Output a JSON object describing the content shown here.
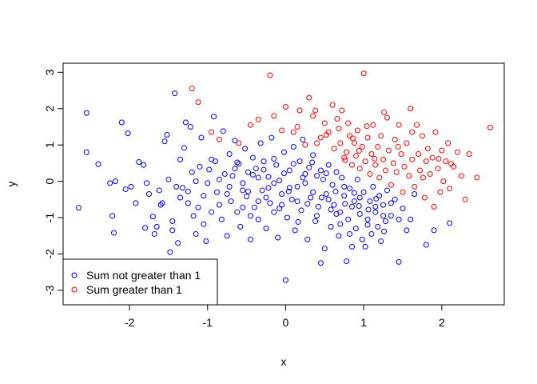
{
  "chart_data": {
    "type": "scatter",
    "title": "",
    "xlabel": "x",
    "ylabel": "y",
    "xlim": [
      -2.85,
      2.8
    ],
    "ylim": [
      -3.4,
      3.25
    ],
    "xticks": [
      -2,
      -1,
      0,
      1,
      2
    ],
    "yticks": [
      -3,
      -2,
      -1,
      0,
      1,
      2,
      3
    ],
    "grid": false,
    "legend_position": "bottom-left",
    "series": [
      {
        "name": "Sum not greater than 1",
        "color": "#0000ff",
        "marker": "open-circle",
        "points": [
          [
            -2.65,
            -0.73
          ],
          [
            -2.55,
            1.88
          ],
          [
            -2.55,
            0.8
          ],
          [
            -2.4,
            0.47
          ],
          [
            -2.25,
            -0.05
          ],
          [
            -2.22,
            -0.95
          ],
          [
            -2.2,
            -1.42
          ],
          [
            -2.18,
            0.0
          ],
          [
            -2.1,
            1.62
          ],
          [
            -2.05,
            -0.22
          ],
          [
            -2.02,
            1.32
          ],
          [
            -1.98,
            -0.15
          ],
          [
            -1.92,
            -0.6
          ],
          [
            -1.88,
            0.53
          ],
          [
            -1.82,
            0.45
          ],
          [
            -1.8,
            -1.28
          ],
          [
            -1.78,
            -0.05
          ],
          [
            -1.75,
            -0.35
          ],
          [
            -1.7,
            -0.97
          ],
          [
            -1.68,
            -1.45
          ],
          [
            -1.65,
            -1.25
          ],
          [
            -1.62,
            -0.25
          ],
          [
            -1.6,
            -0.65
          ],
          [
            -1.58,
            -0.6
          ],
          [
            -1.55,
            1.1
          ],
          [
            -1.52,
            1.28
          ],
          [
            -1.5,
            0.05
          ],
          [
            -1.48,
            -1.95
          ],
          [
            -1.45,
            -1.35
          ],
          [
            -1.42,
            2.42
          ],
          [
            -1.4,
            -0.15
          ],
          [
            -1.38,
            -1.7
          ],
          [
            -1.35,
            -0.45
          ],
          [
            -1.32,
            -0.18
          ],
          [
            -1.3,
            0.92
          ],
          [
            -1.28,
            1.62
          ],
          [
            -1.25,
            -0.28
          ],
          [
            -1.22,
            1.5
          ],
          [
            -1.2,
            0.25
          ],
          [
            -1.18,
            -0.95
          ],
          [
            -1.15,
            -1.45
          ],
          [
            -1.12,
            -0.72
          ],
          [
            -1.1,
            0.4
          ],
          [
            -1.08,
            1.2
          ],
          [
            -1.05,
            -1.18
          ],
          [
            -1.02,
            -1.65
          ],
          [
            -1.0,
            -0.05
          ],
          [
            -0.98,
            0.32
          ],
          [
            -0.95,
            -0.85
          ],
          [
            -0.92,
            1.78
          ],
          [
            -0.9,
            0.55
          ],
          [
            -0.88,
            -0.3
          ],
          [
            -0.85,
            0.05
          ],
          [
            -0.82,
            -1.05
          ],
          [
            -0.8,
            1.38
          ],
          [
            -0.78,
            0.2
          ],
          [
            -0.75,
            -1.5
          ],
          [
            -0.72,
            0.75
          ],
          [
            -0.7,
            -0.55
          ],
          [
            -0.68,
            0.15
          ],
          [
            -0.65,
            1.12
          ],
          [
            -0.62,
            -0.85
          ],
          [
            -0.6,
            0.48
          ],
          [
            -0.58,
            -1.25
          ],
          [
            -0.55,
            -0.05
          ],
          [
            -0.52,
            0.9
          ],
          [
            -0.5,
            -0.42
          ],
          [
            -0.48,
            0.25
          ],
          [
            -0.45,
            -1.6
          ],
          [
            -0.42,
            0.65
          ],
          [
            -0.4,
            -0.72
          ],
          [
            -0.38,
            0.35
          ],
          [
            -0.35,
            -1.05
          ],
          [
            -0.32,
            1.05
          ],
          [
            -0.3,
            -0.25
          ],
          [
            -0.28,
            0.55
          ],
          [
            -0.25,
            -1.3
          ],
          [
            -0.22,
            0.12
          ],
          [
            -0.2,
            -0.6
          ],
          [
            -0.18,
            1.2
          ],
          [
            -0.15,
            -0.85
          ],
          [
            -0.12,
            0.45
          ],
          [
            -0.1,
            -1.55
          ],
          [
            -0.08,
            0.02
          ],
          [
            -0.05,
            -0.35
          ],
          [
            -0.02,
            0.8
          ],
          [
            0.0,
            -2.72
          ],
          [
            0.02,
            -1.0
          ],
          [
            0.05,
            0.3
          ],
          [
            0.08,
            -0.5
          ],
          [
            0.1,
            0.95
          ],
          [
            0.12,
            -1.35
          ],
          [
            0.15,
            -0.15
          ],
          [
            0.18,
            0.55
          ],
          [
            0.2,
            -0.8
          ],
          [
            0.22,
            1.15
          ],
          [
            0.25,
            -0.05
          ],
          [
            0.28,
            -1.6
          ],
          [
            0.3,
            0.38
          ],
          [
            0.32,
            -0.45
          ],
          [
            0.35,
            0.72
          ],
          [
            0.38,
            -1.1
          ],
          [
            0.4,
            0.15
          ],
          [
            0.42,
            -0.7
          ],
          [
            0.45,
            -2.25
          ],
          [
            0.48,
            0.05
          ],
          [
            0.5,
            -1.85
          ],
          [
            0.52,
            -0.35
          ],
          [
            0.55,
            0.45
          ],
          [
            0.58,
            -1.25
          ],
          [
            0.6,
            -0.1
          ],
          [
            0.62,
            -0.65
          ],
          [
            0.65,
            0.25
          ],
          [
            0.68,
            -1.5
          ],
          [
            0.7,
            -0.85
          ],
          [
            0.72,
            0.1
          ],
          [
            0.75,
            -0.4
          ],
          [
            0.78,
            -2.2
          ],
          [
            0.8,
            -1.05
          ],
          [
            0.82,
            -0.2
          ],
          [
            0.85,
            -1.8
          ],
          [
            0.88,
            -0.55
          ],
          [
            0.9,
            -1.3
          ],
          [
            0.92,
            0.05
          ],
          [
            0.95,
            -0.9
          ],
          [
            0.98,
            -1.6
          ],
          [
            1.0,
            -0.3
          ],
          [
            1.02,
            -1.8
          ],
          [
            1.05,
            -1.05
          ],
          [
            1.08,
            -0.55
          ],
          [
            1.1,
            -1.45
          ],
          [
            1.12,
            -0.15
          ],
          [
            1.15,
            -0.85
          ],
          [
            1.18,
            -1.25
          ],
          [
            1.2,
            -0.4
          ],
          [
            1.22,
            -1.65
          ],
          [
            1.25,
            -0.65
          ],
          [
            1.28,
            -1.1
          ],
          [
            1.3,
            -0.25
          ],
          [
            1.35,
            -0.95
          ],
          [
            1.4,
            -0.5
          ],
          [
            1.45,
            -2.22
          ],
          [
            1.5,
            -0.75
          ],
          [
            1.55,
            -1.35
          ],
          [
            1.6,
            -1.05
          ],
          [
            1.65,
            -0.35
          ],
          [
            1.8,
            -1.75
          ],
          [
            1.9,
            -1.35
          ],
          [
            2.1,
            -1.15
          ],
          [
            -0.72,
            -0.15
          ],
          [
            -0.62,
            0.52
          ],
          [
            -0.55,
            -0.72
          ],
          [
            -0.48,
            -0.28
          ],
          [
            -0.42,
            0.18
          ],
          [
            -0.35,
            -0.55
          ],
          [
            -0.28,
            0.32
          ],
          [
            -0.22,
            -0.18
          ],
          [
            -0.15,
            0.62
          ],
          [
            -0.08,
            -0.75
          ],
          [
            -0.02,
            0.22
          ],
          [
            0.04,
            -0.28
          ],
          [
            0.1,
            0.48
          ],
          [
            0.16,
            -1.12
          ],
          [
            0.22,
            0.1
          ],
          [
            0.28,
            -0.62
          ],
          [
            0.34,
            0.52
          ],
          [
            0.4,
            -0.95
          ],
          [
            0.46,
            -0.45
          ],
          [
            0.52,
            0.22
          ],
          [
            0.58,
            -0.78
          ],
          [
            0.64,
            -0.28
          ],
          [
            0.7,
            -1.18
          ],
          [
            0.76,
            -0.62
          ],
          [
            0.82,
            -1.45
          ],
          [
            0.88,
            -0.32
          ],
          [
            0.94,
            -0.68
          ],
          [
            1.06,
            -0.78
          ],
          [
            1.16,
            -0.48
          ],
          [
            1.26,
            -1.38
          ],
          [
            -1.45,
            -1.1
          ],
          [
            -1.35,
            0.6
          ],
          [
            -1.25,
            -0.6
          ],
          [
            -1.15,
            0.0
          ],
          [
            -1.05,
            -0.4
          ],
          [
            -0.95,
            0.6
          ],
          [
            -0.85,
            -0.65
          ],
          [
            -0.75,
            -0.35
          ],
          [
            -0.65,
            0.35
          ],
          [
            -0.55,
            -0.25
          ],
          [
            -0.45,
            -0.95
          ],
          [
            -0.35,
            0.1
          ],
          [
            -0.25,
            -0.45
          ],
          [
            -0.15,
            -0.05
          ],
          [
            -0.05,
            -0.65
          ],
          [
            0.05,
            -0.18
          ],
          [
            0.15,
            -0.55
          ],
          [
            0.25,
            0.2
          ],
          [
            0.35,
            -0.3
          ],
          [
            0.45,
            0.3
          ],
          [
            0.55,
            -0.5
          ],
          [
            0.65,
            -0.9
          ],
          [
            0.75,
            -0.15
          ],
          [
            0.85,
            -0.7
          ],
          [
            0.95,
            -0.45
          ],
          [
            1.05,
            -1.2
          ],
          [
            1.15,
            -0.7
          ],
          [
            1.25,
            -0.95
          ],
          [
            1.35,
            -0.6
          ],
          [
            1.45,
            -1.05
          ]
        ]
      },
      {
        "name": "Sum greater than 1",
        "color": "#ff0000",
        "marker": "open-circle",
        "points": [
          [
            -1.2,
            2.55
          ],
          [
            -1.12,
            2.18
          ],
          [
            -0.95,
            1.35
          ],
          [
            -0.85,
            1.15
          ],
          [
            -0.6,
            1.05
          ],
          [
            -0.45,
            1.55
          ],
          [
            -0.35,
            1.7
          ],
          [
            -0.2,
            2.92
          ],
          [
            -0.15,
            1.8
          ],
          [
            -0.05,
            1.4
          ],
          [
            0.0,
            2.05
          ],
          [
            0.1,
            1.35
          ],
          [
            0.15,
            1.5
          ],
          [
            0.18,
            1.95
          ],
          [
            0.25,
            1.0
          ],
          [
            0.3,
            2.3
          ],
          [
            0.35,
            1.8
          ],
          [
            0.4,
            1.05
          ],
          [
            0.45,
            1.2
          ],
          [
            0.5,
            1.6
          ],
          [
            0.55,
            1.35
          ],
          [
            0.6,
            2.1
          ],
          [
            0.62,
            0.9
          ],
          [
            0.68,
            1.45
          ],
          [
            0.7,
            1.05
          ],
          [
            0.72,
            1.95
          ],
          [
            0.75,
            0.65
          ],
          [
            0.78,
            0.8
          ],
          [
            0.8,
            1.6
          ],
          [
            0.82,
            1.25
          ],
          [
            0.85,
            0.45
          ],
          [
            0.88,
            1.05
          ],
          [
            0.9,
            0.7
          ],
          [
            0.92,
            1.4
          ],
          [
            0.95,
            0.35
          ],
          [
            0.98,
            0.95
          ],
          [
            1.0,
            2.97
          ],
          [
            1.02,
            0.55
          ],
          [
            1.05,
            1.2
          ],
          [
            1.08,
            0.2
          ],
          [
            1.1,
            0.75
          ],
          [
            1.12,
            1.55
          ],
          [
            1.15,
            0.45
          ],
          [
            1.18,
            0.95
          ],
          [
            1.2,
            0.1
          ],
          [
            1.22,
            1.25
          ],
          [
            1.25,
            0.6
          ],
          [
            1.28,
            0.3
          ],
          [
            1.3,
            1.75
          ],
          [
            1.32,
            0.85
          ],
          [
            1.35,
            -0.1
          ],
          [
            1.38,
            0.5
          ],
          [
            1.4,
            1.15
          ],
          [
            1.42,
            0.25
          ],
          [
            1.45,
            1.55
          ],
          [
            1.48,
            0.75
          ],
          [
            1.5,
            -0.3
          ],
          [
            1.52,
            0.4
          ],
          [
            1.55,
            1.05
          ],
          [
            1.58,
            0.15
          ],
          [
            1.6,
            2.0
          ],
          [
            1.62,
            0.6
          ],
          [
            1.65,
            -0.15
          ],
          [
            1.68,
            1.55
          ],
          [
            1.7,
            0.75
          ],
          [
            1.72,
            0.3
          ],
          [
            1.75,
            1.25
          ],
          [
            1.78,
            -0.45
          ],
          [
            1.8,
            0.55
          ],
          [
            1.82,
            0.9
          ],
          [
            1.85,
            0.2
          ],
          [
            1.88,
            0.65
          ],
          [
            1.9,
            -0.7
          ],
          [
            1.92,
            1.35
          ],
          [
            1.95,
            0.35
          ],
          [
            1.98,
            -0.3
          ],
          [
            2.0,
            0.85
          ],
          [
            2.02,
            0.0
          ],
          [
            2.05,
            0.55
          ],
          [
            2.08,
            1.05
          ],
          [
            2.1,
            -0.2
          ],
          [
            2.15,
            0.4
          ],
          [
            2.2,
            0.8
          ],
          [
            2.25,
            0.15
          ],
          [
            2.3,
            -0.5
          ],
          [
            2.35,
            0.75
          ],
          [
            2.45,
            0.1
          ],
          [
            2.62,
            1.48
          ],
          [
            0.38,
            1.95
          ],
          [
            0.52,
            1.28
          ],
          [
            0.66,
            1.72
          ],
          [
            0.86,
            1.18
          ],
          [
            1.04,
            1.52
          ],
          [
            1.26,
            1.9
          ],
          [
            1.44,
            0.95
          ],
          [
            1.62,
            1.35
          ],
          [
            1.76,
            0.1
          ],
          [
            1.96,
            0.62
          ],
          [
            2.12,
            0.48
          ],
          [
            0.76,
            0.58
          ],
          [
            0.94,
            0.84
          ],
          [
            1.14,
            0.62
          ]
        ]
      }
    ]
  }
}
